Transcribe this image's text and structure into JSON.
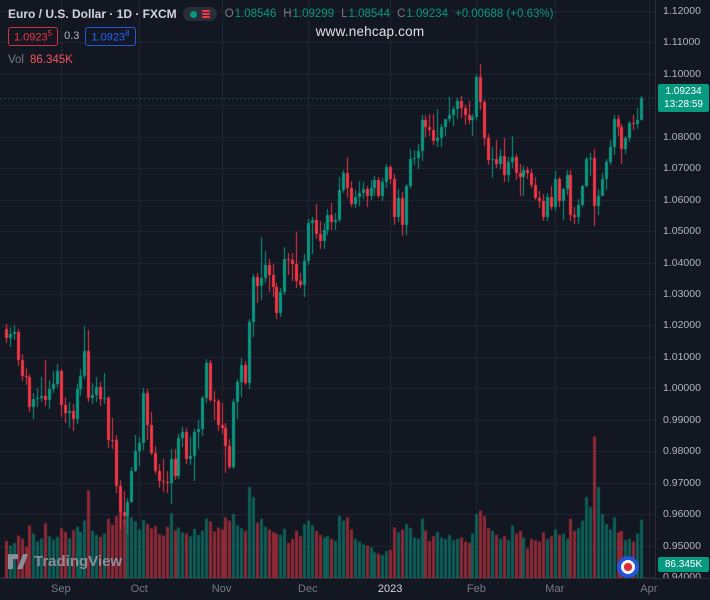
{
  "watermark": "www.nehcap.com",
  "legend": {
    "symbol_line": "Euro / U.S. Dollar · 1D · FXCM",
    "o_label": "O",
    "o_value": "1.08546",
    "h_label": "H",
    "h_value": "1.09299",
    "l_label": "L",
    "l_value": "1.08544",
    "c_label": "C",
    "c_value": "1.09234",
    "change": "+0.00688 (+0.63%)",
    "bid": "1.0923",
    "bid_sup": "5",
    "spread": "0.3",
    "ask": "1.0923",
    "ask_sup": "8",
    "vol_label": "Vol",
    "vol_value": "86.345K"
  },
  "badges": {
    "last_price": "1.09234",
    "countdown": "13:28:59",
    "volume": "86.345K"
  },
  "price_axis": {
    "labels": [
      "1.12000",
      "1.11000",
      "1.10000",
      "1.09000",
      "1.08000",
      "1.07000",
      "1.06000",
      "1.05000",
      "1.04000",
      "1.03000",
      "1.02000",
      "1.01000",
      "1.00000",
      "0.99000",
      "0.98000",
      "0.97000",
      "0.96000",
      "0.95000",
      "0.94000"
    ]
  },
  "time_axis": {
    "labels": [
      {
        "text": "Sep",
        "index": 14,
        "emphasis": false
      },
      {
        "text": "Oct",
        "index": 34,
        "emphasis": false
      },
      {
        "text": "Nov",
        "index": 55,
        "emphasis": false
      },
      {
        "text": "Dec",
        "index": 77,
        "emphasis": false
      },
      {
        "text": "2023",
        "index": 98,
        "emphasis": true
      },
      {
        "text": "Feb",
        "index": 120,
        "emphasis": false
      },
      {
        "text": "Mar",
        "index": 140,
        "emphasis": false
      },
      {
        "text": "Apr",
        "index": 164,
        "emphasis": false
      }
    ]
  },
  "footer": {
    "brand": "TradingView"
  },
  "icons": {
    "legend_eye": "circle-dot",
    "legend_menu": "hamburger",
    "footer_logo": "tradingview-mark",
    "bottom_right": "roundel"
  },
  "colors": {
    "bg": "#131722",
    "up": "#089981",
    "down": "#f23645",
    "vol_up": "rgba(8,153,129,0.55)",
    "vol_down": "rgba(242,54,69,0.55)",
    "grid": "rgba(42,46,57,0.65)",
    "axis_text": "#b2b5be",
    "muted": "#787b86",
    "bright": "#d1d4dc",
    "bid": "#f23645",
    "ask": "#2962ff",
    "badge_green": "#089981",
    "vol_legend": "#f7525f"
  },
  "chart_data": {
    "type": "candlestick",
    "title": "Euro / U.S. Dollar",
    "symbol": "EUR/USD",
    "interval": "1D",
    "exchange": "FXCM",
    "price_range": [
      0.94,
      1.12
    ],
    "volume_max_k": 215,
    "series_format": [
      "open",
      "high",
      "low",
      "close",
      "volume_k"
    ],
    "candles": [
      [
        1.019,
        1.0205,
        1.0145,
        1.016,
        55
      ],
      [
        1.016,
        1.0195,
        1.013,
        1.0172,
        48
      ],
      [
        1.0172,
        1.0202,
        1.0155,
        1.018,
        52
      ],
      [
        1.018,
        1.019,
        1.007,
        1.009,
        63
      ],
      [
        1.009,
        1.011,
        1.0022,
        1.004,
        58
      ],
      [
        1.004,
        1.0065,
        1.001,
        1.0035,
        46
      ],
      [
        1.0035,
        1.0045,
        0.9926,
        0.9941,
        78
      ],
      [
        0.9941,
        0.9985,
        0.9901,
        0.9967,
        66
      ],
      [
        0.9967,
        1.0,
        0.994,
        0.9968,
        54
      ],
      [
        0.9968,
        1.0035,
        0.9955,
        0.9975,
        59
      ],
      [
        0.9975,
        1.009,
        0.9945,
        0.9964,
        81
      ],
      [
        0.9964,
        1.0027,
        0.9935,
        0.9997,
        62
      ],
      [
        0.9997,
        1.0054,
        0.9985,
        1.0015,
        57
      ],
      [
        1.0015,
        1.0078,
        1.0,
        1.0056,
        61
      ],
      [
        1.0056,
        1.006,
        0.991,
        0.9947,
        74
      ],
      [
        0.9947,
        0.9972,
        0.989,
        0.992,
        68
      ],
      [
        0.992,
        0.9955,
        0.9875,
        0.9928,
        59
      ],
      [
        0.9928,
        0.995,
        0.9864,
        0.9903,
        71
      ],
      [
        0.9903,
        1.0015,
        0.9885,
        0.9997,
        76
      ],
      [
        0.9997,
        1.006,
        0.9975,
        1.004,
        69
      ],
      [
        1.004,
        1.0198,
        1.003,
        1.012,
        85
      ],
      [
        1.012,
        1.0187,
        0.9955,
        0.997,
        130
      ],
      [
        0.997,
        1.0018,
        0.995,
        0.9979,
        70
      ],
      [
        0.9979,
        1.0035,
        0.9955,
        1.0005,
        64
      ],
      [
        1.0005,
        1.002,
        0.9944,
        0.9966,
        61
      ],
      [
        0.9966,
        1.005,
        0.995,
        0.997,
        66
      ],
      [
        0.997,
        0.9975,
        0.981,
        0.9837,
        88
      ],
      [
        0.9837,
        0.9907,
        0.9807,
        0.9836,
        79
      ],
      [
        0.9836,
        0.9852,
        0.9667,
        0.969,
        92
      ],
      [
        0.969,
        0.9709,
        0.9554,
        0.9607,
        98
      ],
      [
        0.9607,
        0.9672,
        0.957,
        0.9594,
        87
      ],
      [
        0.9594,
        0.965,
        0.9536,
        0.9637,
        101
      ],
      [
        0.9637,
        0.975,
        0.9634,
        0.9737,
        90
      ],
      [
        0.9737,
        0.9853,
        0.9733,
        0.9802,
        84
      ],
      [
        0.9802,
        0.9844,
        0.9753,
        0.9826,
        72
      ],
      [
        0.9826,
        1.0,
        0.9803,
        0.9986,
        86
      ],
      [
        0.9986,
        0.9999,
        0.9835,
        0.9882,
        80
      ],
      [
        0.9882,
        0.9925,
        0.9788,
        0.9793,
        74
      ],
      [
        0.9793,
        0.9817,
        0.9726,
        0.9737,
        77
      ],
      [
        0.9737,
        0.9758,
        0.9682,
        0.9705,
        65
      ],
      [
        0.9705,
        0.9775,
        0.967,
        0.9702,
        63
      ],
      [
        0.9702,
        0.9738,
        0.9668,
        0.97,
        76
      ],
      [
        0.97,
        0.9808,
        0.9632,
        0.9775,
        96
      ],
      [
        0.9775,
        0.9807,
        0.9709,
        0.972,
        71
      ],
      [
        0.972,
        0.9854,
        0.9712,
        0.9842,
        75
      ],
      [
        0.9842,
        0.9876,
        0.9815,
        0.986,
        68
      ],
      [
        0.986,
        0.9874,
        0.9758,
        0.9775,
        66
      ],
      [
        0.9775,
        0.9845,
        0.9755,
        0.9786,
        62
      ],
      [
        0.9786,
        0.987,
        0.9705,
        0.986,
        73
      ],
      [
        0.986,
        0.9899,
        0.9808,
        0.987,
        64
      ],
      [
        0.987,
        0.9976,
        0.985,
        0.9968,
        70
      ],
      [
        0.9968,
        1.0093,
        0.9952,
        1.0079,
        88
      ],
      [
        1.0079,
        1.0089,
        0.9955,
        0.9963,
        84
      ],
      [
        0.9963,
        0.999,
        0.9899,
        0.9961,
        69
      ],
      [
        0.9961,
        0.9967,
        0.9865,
        0.9884,
        75
      ],
      [
        0.9884,
        0.9953,
        0.9855,
        0.9875,
        72
      ],
      [
        0.9875,
        0.989,
        0.973,
        0.9817,
        90
      ],
      [
        0.9817,
        0.984,
        0.9742,
        0.975,
        85
      ],
      [
        0.975,
        0.9967,
        0.9745,
        0.9957,
        95
      ],
      [
        0.9957,
        1.003,
        0.9903,
        1.002,
        78
      ],
      [
        1.002,
        1.0096,
        0.9972,
        1.0074,
        74
      ],
      [
        1.0074,
        1.0088,
        1.001,
        1.0016,
        70
      ],
      [
        1.0016,
        1.0222,
        0.9999,
        1.021,
        135
      ],
      [
        1.021,
        1.0364,
        1.0163,
        1.0354,
        120
      ],
      [
        1.0354,
        1.0368,
        1.0271,
        1.0325,
        82
      ],
      [
        1.0325,
        1.0481,
        1.028,
        1.035,
        88
      ],
      [
        1.035,
        1.0438,
        1.0334,
        1.0393,
        76
      ],
      [
        1.0393,
        1.041,
        1.0305,
        1.0362,
        72
      ],
      [
        1.0362,
        1.0395,
        1.029,
        1.0323,
        68
      ],
      [
        1.0323,
        1.0335,
        1.0222,
        1.0239,
        66
      ],
      [
        1.0239,
        1.032,
        1.0226,
        1.0305,
        64
      ],
      [
        1.0305,
        1.0448,
        1.0296,
        1.041,
        73
      ],
      [
        1.041,
        1.043,
        1.036,
        1.0408,
        52
      ],
      [
        1.0408,
        1.043,
        1.034,
        1.0395,
        58
      ],
      [
        1.0395,
        1.0497,
        1.032,
        1.034,
        70
      ],
      [
        1.034,
        1.0368,
        1.0319,
        1.0328,
        62
      ],
      [
        1.0328,
        1.0428,
        1.029,
        1.0405,
        80
      ],
      [
        1.0405,
        1.0539,
        1.0393,
        1.0525,
        85
      ],
      [
        1.0525,
        1.0545,
        1.0428,
        1.0535,
        78
      ],
      [
        1.0535,
        1.0585,
        1.0474,
        1.049,
        70
      ],
      [
        1.049,
        1.0531,
        1.0442,
        1.0468,
        64
      ],
      [
        1.0468,
        1.0526,
        1.0443,
        1.0505,
        60
      ],
      [
        1.0505,
        1.057,
        1.0489,
        1.0551,
        62
      ],
      [
        1.0551,
        1.0589,
        1.0505,
        1.053,
        58
      ],
      [
        1.053,
        1.0558,
        1.0504,
        1.0535,
        55
      ],
      [
        1.0535,
        1.0673,
        1.053,
        1.0632,
        92
      ],
      [
        1.0632,
        1.0695,
        1.0622,
        1.0685,
        85
      ],
      [
        1.0685,
        1.0736,
        1.0605,
        1.0637,
        90
      ],
      [
        1.0637,
        1.066,
        1.0578,
        1.0586,
        72
      ],
      [
        1.0586,
        1.0631,
        1.0575,
        1.0609,
        58
      ],
      [
        1.0609,
        1.0658,
        1.058,
        1.0622,
        54
      ],
      [
        1.0622,
        1.0656,
        1.0603,
        1.0633,
        50
      ],
      [
        1.0633,
        1.0644,
        1.0577,
        1.0612,
        48
      ],
      [
        1.0612,
        1.0662,
        1.0599,
        1.0638,
        45
      ],
      [
        1.0638,
        1.0675,
        1.0613,
        1.0664,
        38
      ],
      [
        1.0664,
        1.0671,
        1.0605,
        1.0613,
        36
      ],
      [
        1.0613,
        1.0668,
        1.0597,
        1.0655,
        34
      ],
      [
        1.0655,
        1.0714,
        1.0638,
        1.0705,
        40
      ],
      [
        1.0705,
        1.071,
        1.065,
        1.0666,
        42
      ],
      [
        1.0666,
        1.0683,
        1.0519,
        1.0546,
        75
      ],
      [
        1.0546,
        1.0635,
        1.053,
        1.0605,
        68
      ],
      [
        1.0605,
        1.0624,
        1.0483,
        1.052,
        72
      ],
      [
        1.052,
        1.0651,
        1.0487,
        1.0643,
        80
      ],
      [
        1.0643,
        1.0761,
        1.0634,
        1.073,
        74
      ],
      [
        1.073,
        1.0758,
        1.0711,
        1.0733,
        60
      ],
      [
        1.0733,
        1.0776,
        1.0698,
        1.0756,
        58
      ],
      [
        1.0756,
        1.0868,
        1.0723,
        1.0853,
        88
      ],
      [
        1.0853,
        1.0869,
        1.0798,
        1.083,
        70
      ],
      [
        1.083,
        1.0874,
        1.0803,
        1.0822,
        55
      ],
      [
        1.0822,
        1.0871,
        1.0775,
        1.0786,
        62
      ],
      [
        1.0786,
        1.0887,
        1.0766,
        1.0797,
        68
      ],
      [
        1.0797,
        1.084,
        1.0766,
        1.0832,
        60
      ],
      [
        1.0832,
        1.0858,
        1.0802,
        1.0855,
        58
      ],
      [
        1.0855,
        1.0927,
        1.0848,
        1.087,
        64
      ],
      [
        1.087,
        1.0899,
        1.0835,
        1.0889,
        56
      ],
      [
        1.0889,
        1.0923,
        1.0855,
        1.0915,
        58
      ],
      [
        1.0915,
        1.0929,
        1.0859,
        1.089,
        60
      ],
      [
        1.089,
        1.09,
        1.0838,
        1.087,
        54
      ],
      [
        1.087,
        1.0915,
        1.0841,
        1.0852,
        52
      ],
      [
        1.0852,
        1.0874,
        1.0802,
        1.0863,
        66
      ],
      [
        1.0863,
        1.1001,
        1.0852,
        1.099,
        95
      ],
      [
        1.099,
        1.1033,
        1.0885,
        1.091,
        100
      ],
      [
        1.091,
        1.0918,
        1.0771,
        1.0795,
        92
      ],
      [
        1.0795,
        1.0809,
        1.071,
        1.0725,
        74
      ],
      [
        1.0725,
        1.0766,
        1.0669,
        1.0728,
        70
      ],
      [
        1.0728,
        1.079,
        1.0702,
        1.0714,
        64
      ],
      [
        1.0714,
        1.0761,
        1.0699,
        1.0738,
        58
      ],
      [
        1.0738,
        1.0797,
        1.0656,
        1.0679,
        62
      ],
      [
        1.0679,
        1.0736,
        1.0656,
        1.0721,
        56
      ],
      [
        1.0721,
        1.0804,
        1.0702,
        1.0736,
        78
      ],
      [
        1.0736,
        1.0744,
        1.0661,
        1.0685,
        66
      ],
      [
        1.0685,
        1.0714,
        1.0612,
        1.0672,
        70
      ],
      [
        1.0672,
        1.0706,
        1.0613,
        1.0694,
        60
      ],
      [
        1.0694,
        1.0705,
        1.0665,
        1.0685,
        44
      ],
      [
        1.0685,
        1.0698,
        1.0636,
        1.0648,
        58
      ],
      [
        1.0648,
        1.0672,
        1.0598,
        1.0605,
        56
      ],
      [
        1.0605,
        1.0626,
        1.0575,
        1.0595,
        54
      ],
      [
        1.0595,
        1.0618,
        1.0533,
        1.0546,
        68
      ],
      [
        1.0546,
        1.062,
        1.0531,
        1.0608,
        58
      ],
      [
        1.0608,
        1.0644,
        1.0566,
        1.0577,
        62
      ],
      [
        1.0577,
        1.0691,
        1.0565,
        1.0665,
        72
      ],
      [
        1.0665,
        1.0673,
        1.0577,
        1.0597,
        64
      ],
      [
        1.0597,
        1.0638,
        1.0534,
        1.0634,
        66
      ],
      [
        1.0634,
        1.0694,
        1.0614,
        1.068,
        58
      ],
      [
        1.068,
        1.0695,
        1.0532,
        1.055,
        88
      ],
      [
        1.055,
        1.0578,
        1.0524,
        1.0545,
        70
      ],
      [
        1.0545,
        1.0601,
        1.0523,
        1.0582,
        74
      ],
      [
        1.0582,
        1.0648,
        1.0577,
        1.0643,
        85
      ],
      [
        1.0643,
        1.0737,
        1.0641,
        1.0729,
        120
      ],
      [
        1.0729,
        1.0749,
        1.0674,
        1.0733,
        105
      ],
      [
        1.0733,
        1.076,
        1.0516,
        1.0579,
        210
      ],
      [
        1.0579,
        1.0635,
        1.0551,
        1.0611,
        135
      ],
      [
        1.0611,
        1.0686,
        1.0611,
        1.0665,
        95
      ],
      [
        1.0665,
        1.073,
        1.0632,
        1.072,
        80
      ],
      [
        1.072,
        1.0789,
        1.0711,
        1.0769,
        72
      ],
      [
        1.0769,
        1.0868,
        1.0743,
        1.0856,
        90
      ],
      [
        1.0856,
        1.0869,
        1.0802,
        1.083,
        68
      ],
      [
        1.083,
        1.084,
        1.0713,
        1.076,
        70
      ],
      [
        1.076,
        1.0804,
        1.0745,
        1.0796,
        56
      ],
      [
        1.0796,
        1.085,
        1.0782,
        1.0845,
        58
      ],
      [
        1.0845,
        1.0868,
        1.082,
        1.0841,
        54
      ],
      [
        1.0841,
        1.089,
        1.0824,
        1.0854,
        66
      ],
      [
        1.08546,
        1.09299,
        1.08544,
        1.09234,
        86.345
      ]
    ]
  }
}
